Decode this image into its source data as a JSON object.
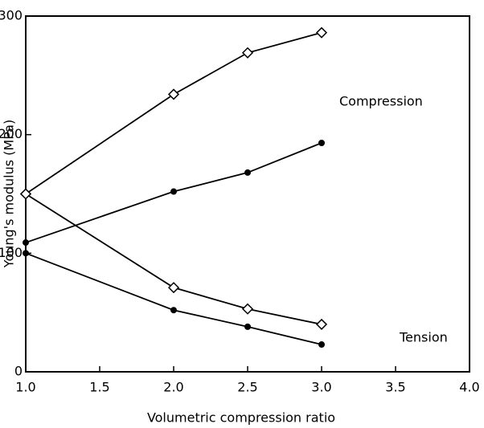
{
  "chart_data": {
    "type": "line",
    "xlabel": "Volumetric compression ratio",
    "ylabel": "Young's modulus (MPa)",
    "annotations": [
      "Compression",
      "Tension"
    ],
    "series": [
      {
        "marker": "open-diamond",
        "color": "#000000",
        "x": [
          1.0,
          2.0,
          2.5,
          3.0
        ],
        "values": [
          150,
          234,
          269,
          286
        ]
      },
      {
        "marker": "filled-circle",
        "color": "#000000",
        "x": [
          1.0,
          2.0,
          2.5,
          3.0
        ],
        "values": [
          109,
          152,
          168,
          193
        ]
      },
      {
        "marker": "open-diamond",
        "color": "#000000",
        "x": [
          1.0,
          2.0,
          2.5,
          3.0
        ],
        "values": [
          150,
          71,
          53,
          40
        ]
      },
      {
        "marker": "filled-circle",
        "color": "#000000",
        "x": [
          1.0,
          2.0,
          2.5,
          3.0
        ],
        "values": [
          100,
          52,
          38,
          23
        ]
      }
    ],
    "xlim": [
      1.0,
      4.0
    ],
    "xticks": [
      {
        "value": 1.0,
        "label": "1.0"
      },
      {
        "value": 1.5,
        "label": "1.5"
      },
      {
        "value": 2.0,
        "label": "2.0"
      },
      {
        "value": 2.5,
        "label": "2.5"
      },
      {
        "value": 3.0,
        "label": "3.0"
      },
      {
        "value": 3.5,
        "label": "3.5"
      },
      {
        "value": 4.0,
        "label": "4.0"
      }
    ],
    "ylim": [
      0,
      300
    ],
    "yticks": [
      0,
      100,
      200,
      300
    ]
  }
}
